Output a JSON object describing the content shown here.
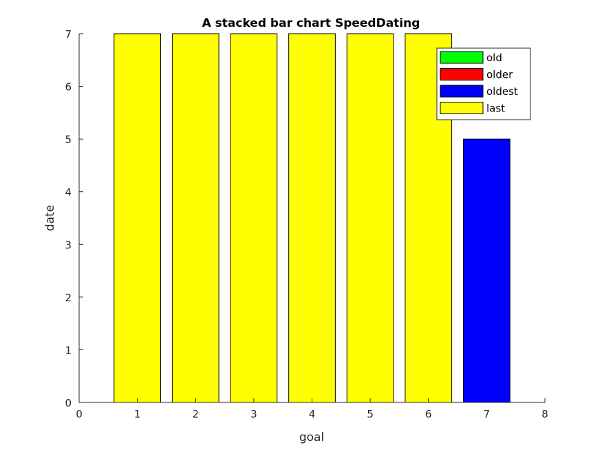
{
  "chart_data": {
    "type": "bar",
    "stacked": true,
    "title": "A stacked bar chart SpeedDating",
    "xlabel": "goal",
    "ylabel": "date",
    "xlim": [
      0,
      8
    ],
    "ylim": [
      0,
      7
    ],
    "xticks": [
      "0",
      "1",
      "2",
      "3",
      "4",
      "5",
      "6",
      "7",
      "8"
    ],
    "yticks": [
      "0",
      "1",
      "2",
      "3",
      "4",
      "5",
      "6",
      "7"
    ],
    "categories": [
      1,
      2,
      3,
      4,
      5,
      6,
      7
    ],
    "series": [
      {
        "name": "old",
        "color": "#00ff00",
        "values": [
          0,
          0,
          0,
          0,
          0,
          0,
          0
        ]
      },
      {
        "name": "older",
        "color": "#ff0000",
        "values": [
          0,
          0,
          0,
          0,
          0,
          0,
          0
        ]
      },
      {
        "name": "oldest",
        "color": "#0000ff",
        "values": [
          0,
          0,
          0,
          0,
          0,
          0,
          5
        ]
      },
      {
        "name": "last",
        "color": "#ffff00",
        "values": [
          7,
          7,
          7,
          7,
          7,
          7,
          0
        ]
      }
    ],
    "grid": false,
    "legend_position": "top-right"
  }
}
